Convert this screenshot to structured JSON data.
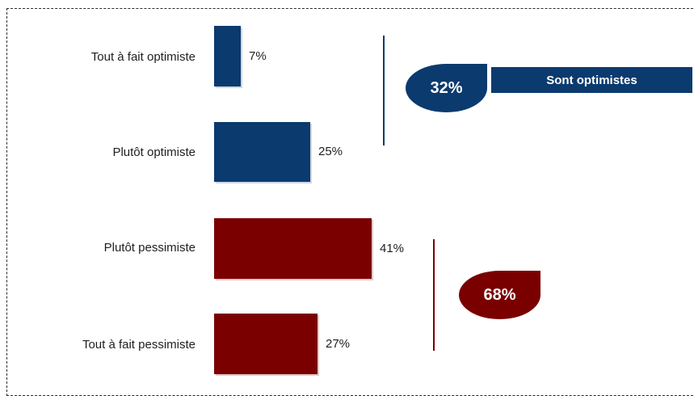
{
  "colors": {
    "optimist": "#0b3a6e",
    "pessimist": "#7a0000"
  },
  "chart_data": {
    "type": "bar",
    "orientation": "horizontal",
    "categories": [
      "Tout à fait optimiste",
      "Plutôt optimiste",
      "Plutôt pessimiste",
      "Tout à fait pessimiste"
    ],
    "values": [
      7,
      25,
      41,
      27
    ],
    "value_labels": [
      "7%",
      "25%",
      "41%",
      "27%"
    ],
    "bar_colors": [
      "#0b3a6e",
      "#0b3a6e",
      "#7a0000",
      "#7a0000"
    ],
    "xlim": [
      0,
      41
    ],
    "grid": false,
    "title": "",
    "xlabel": "",
    "ylabel": ""
  },
  "groups": {
    "optimist": {
      "total": "32%",
      "banner": "Sont optimistes"
    },
    "pessimist": {
      "total": "68%"
    }
  }
}
